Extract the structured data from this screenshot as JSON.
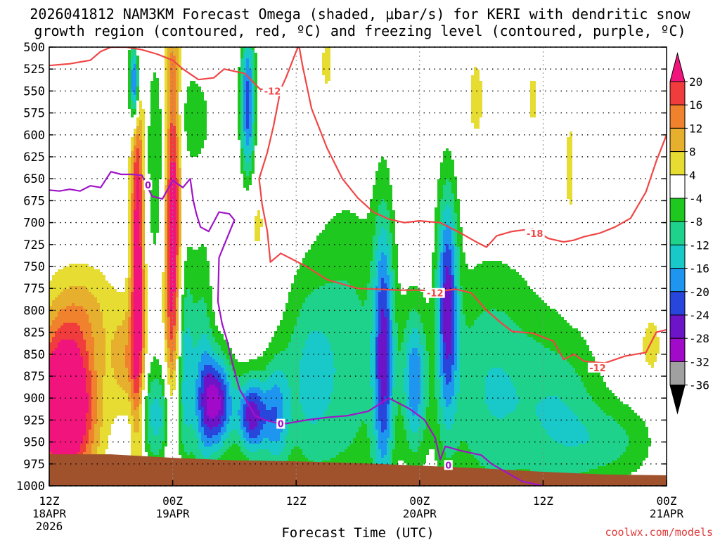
{
  "title": {
    "line1": "2026041812 NAM3KM Forecast Omega (shaded, μbar/s) for KERI with dendritic snow",
    "line2": "growth region (contoured, red, ºC) and freezing level (contoured, purple, ºC)"
  },
  "credit": "coolwx.com/models",
  "chart_data": {
    "type": "heatmap",
    "title": "2026041812 NAM3KM Forecast Omega (shaded, μbar/s) for KERI with dendritic snow growth region (contoured, red, ºC) and freezing level (contoured, purple, ºC)",
    "xlabel": "Forecast Time (UTC)",
    "ylabel": "",
    "x_ticks": [
      {
        "hour": 0,
        "label": "12Z",
        "label2": "18APR",
        "label3": "2026"
      },
      {
        "hour": 12,
        "label": "00Z",
        "label2": "19APR",
        "label3": ""
      },
      {
        "hour": 24,
        "label": "12Z",
        "label2": "",
        "label3": ""
      },
      {
        "hour": 36,
        "label": "00Z",
        "label2": "20APR",
        "label3": ""
      },
      {
        "hour": 48,
        "label": "12Z",
        "label2": "",
        "label3": ""
      },
      {
        "hour": 60,
        "label": "00Z",
        "label2": "21APR",
        "label3": ""
      }
    ],
    "xlim_hours": [
      0,
      60
    ],
    "y_ticks": [
      "500",
      "525",
      "550",
      "575",
      "600",
      "625",
      "650",
      "675",
      "700",
      "725",
      "750",
      "775",
      "800",
      "825",
      "850",
      "875",
      "900",
      "925",
      "950",
      "975",
      "1000"
    ],
    "ylim_hpa": [
      1000,
      500
    ],
    "grid": true,
    "colorbar": {
      "labels": [
        "20",
        "16",
        "12",
        "8",
        "4",
        "-4",
        "-8",
        "-12",
        "-16",
        "-20",
        "-24",
        "-28",
        "-32",
        "-36"
      ],
      "bins": [
        {
          "lo": 20,
          "hi": 99,
          "color": "#f0147c"
        },
        {
          "lo": 16,
          "hi": 20,
          "color": "#f03c3c"
        },
        {
          "lo": 12,
          "hi": 16,
          "color": "#f0822d"
        },
        {
          "lo": 8,
          "hi": 12,
          "color": "#e6af2d"
        },
        {
          "lo": 4,
          "hi": 8,
          "color": "#e6dc32"
        },
        {
          "lo": -4,
          "hi": 4,
          "color": "#ffffff"
        },
        {
          "lo": -8,
          "hi": -4,
          "color": "#1ec81e"
        },
        {
          "lo": -12,
          "hi": -8,
          "color": "#1ed28c"
        },
        {
          "lo": -16,
          "hi": -12,
          "color": "#19c8c8"
        },
        {
          "lo": -20,
          "hi": -16,
          "color": "#1e96f0"
        },
        {
          "lo": -24,
          "hi": -20,
          "color": "#2846dc"
        },
        {
          "lo": -28,
          "hi": -24,
          "color": "#6e14c8"
        },
        {
          "lo": -32,
          "hi": -28,
          "color": "#a00ac8"
        },
        {
          "lo": -36,
          "hi": -32,
          "color": "#a0a0a0"
        },
        {
          "lo": -99,
          "hi": -36,
          "color": "#000000"
        }
      ]
    },
    "omega_features": [
      {
        "hour": 1.5,
        "p": 910,
        "dt": 3.0,
        "dp": 90,
        "amp": 34
      },
      {
        "hour": 3.5,
        "p": 800,
        "dt": 3.5,
        "dp": 60,
        "amp": 7
      },
      {
        "hour": 7.5,
        "p": 860,
        "dt": 1.5,
        "dp": 60,
        "amp": 10
      },
      {
        "hour": 8.6,
        "p": 730,
        "dt": 0.7,
        "dp": 240,
        "amp": 26
      },
      {
        "hour": 12.0,
        "p": 700,
        "dt": 0.8,
        "dp": 240,
        "amp": 28
      },
      {
        "hour": 10.5,
        "p": 630,
        "dt": 2.0,
        "dp": 140,
        "amp": -7
      },
      {
        "hour": 8.3,
        "p": 540,
        "dt": 0.5,
        "dp": 50,
        "amp": -30
      },
      {
        "hour": 10.5,
        "p": 920,
        "dt": 2.0,
        "dp": 60,
        "amp": -14
      },
      {
        "hour": 13.2,
        "p": 860,
        "dt": 1.0,
        "dp": 120,
        "amp": -14
      },
      {
        "hour": 16.3,
        "p": 905,
        "dt": 1.6,
        "dp": 55,
        "amp": -28
      },
      {
        "hour": 19.7,
        "p": 920,
        "dt": 1.4,
        "dp": 45,
        "amp": -26
      },
      {
        "hour": 22.0,
        "p": 920,
        "dt": 1.3,
        "dp": 65,
        "amp": -16
      },
      {
        "hour": 19.3,
        "p": 565,
        "dt": 0.7,
        "dp": 90,
        "amp": -22
      },
      {
        "hour": 25.0,
        "p": 880,
        "dt": 2.5,
        "dp": 110,
        "amp": -10
      },
      {
        "hour": 29.0,
        "p": 860,
        "dt": 4.0,
        "dp": 180,
        "amp": -10
      },
      {
        "hour": 32.5,
        "p": 850,
        "dt": 1.0,
        "dp": 160,
        "amp": -22
      },
      {
        "hour": 35.5,
        "p": 880,
        "dt": 1.2,
        "dp": 80,
        "amp": -18
      },
      {
        "hour": 38.7,
        "p": 790,
        "dt": 1.0,
        "dp": 130,
        "amp": -24
      },
      {
        "hour": 43.0,
        "p": 890,
        "dt": 5.0,
        "dp": 140,
        "amp": -12
      },
      {
        "hour": 50.0,
        "p": 920,
        "dt": 4.0,
        "dp": 100,
        "amp": -10
      },
      {
        "hour": 55.0,
        "p": 950,
        "dt": 4.0,
        "dp": 45,
        "amp": -8
      },
      {
        "hour": 14.0,
        "p": 580,
        "dt": 2.0,
        "dp": 60,
        "amp": -6
      },
      {
        "hour": 15.0,
        "p": 880,
        "dt": 1.0,
        "dp": 150,
        "amp": -11
      },
      {
        "hour": 27.0,
        "p": 520,
        "dt": 0.7,
        "dp": 40,
        "amp": 6
      },
      {
        "hour": 47.0,
        "p": 560,
        "dt": 0.8,
        "dp": 50,
        "amp": 5
      },
      {
        "hour": 41.5,
        "p": 560,
        "dt": 1.2,
        "dp": 80,
        "amp": 5
      },
      {
        "hour": 50.6,
        "p": 640,
        "dt": 0.6,
        "dp": 100,
        "amp": 5
      },
      {
        "hour": 58.5,
        "p": 840,
        "dt": 1.2,
        "dp": 40,
        "amp": 6
      },
      {
        "hour": 20.0,
        "p": 700,
        "dt": 1.5,
        "dp": 60,
        "amp": 5
      }
    ],
    "series": [
      {
        "name": "-12",
        "kind": "dendritic",
        "color": "#f04646",
        "x": [
          0,
          2,
          4,
          5,
          6,
          7.5,
          9,
          10.5,
          12,
          13,
          14.5,
          16,
          17,
          19,
          20.5,
          21.5,
          22.5,
          22.5,
          22.3,
          21.8,
          21.2,
          20.4,
          20.7,
          21.2,
          21.5,
          22.5,
          25,
          27,
          28.5,
          30,
          32,
          34,
          36,
          38,
          39.5,
          41,
          42.5,
          44,
          45,
          47,
          49,
          50,
          51,
          52,
          54,
          56,
          58,
          59,
          60
        ],
        "y": [
          521,
          519,
          515,
          505,
          500,
          500,
          503,
          508,
          515,
          525,
          537,
          535,
          525,
          530,
          548,
          548,
          548,
          545,
          560,
          590,
          620,
          650,
          680,
          710,
          745,
          735,
          750,
          765,
          770,
          775,
          776,
          777,
          777,
          778,
          776,
          780,
          800,
          815,
          824,
          826,
          835,
          856,
          850,
          858,
          860,
          852,
          848,
          825,
          822
        ]
      },
      {
        "name": "-18",
        "kind": "dendritic",
        "color": "#f04646",
        "x": [
          22.5,
          23,
          23.5,
          24,
          24.2,
          24.3,
          24.3,
          24.6,
          25.5,
          27,
          28.5,
          30,
          31.5,
          33,
          34.5,
          36,
          38,
          40,
          41.5,
          42.5,
          43.5,
          45,
          47,
          48.5,
          50,
          51,
          52,
          53.5,
          55,
          56.5,
          58,
          59,
          60
        ],
        "y": [
          548,
          535,
          520,
          505,
          500,
          500,
          500,
          520,
          570,
          615,
          650,
          672,
          688,
          696,
          700,
          698,
          700,
          712,
          722,
          728,
          715,
          710,
          707,
          718,
          722,
          720,
          716,
          712,
          705,
          695,
          665,
          630,
          600
        ]
      },
      {
        "name": "0",
        "kind": "freezing",
        "color": "#a014c8",
        "x": [
          0,
          1,
          2,
          3,
          4,
          5,
          6,
          7,
          7.5,
          8,
          9,
          10,
          11,
          12,
          13,
          13.7,
          14,
          14.3,
          14.7,
          15.5,
          16.5,
          17.5,
          18,
          17.2,
          16.5,
          16.4,
          16.8,
          17.3,
          17.8,
          18.5,
          20,
          21,
          22,
          23,
          25,
          27,
          29,
          31,
          33,
          35,
          36.5,
          37.5,
          38,
          38.5,
          40,
          42,
          43,
          44.5,
          46,
          48
        ],
        "y": [
          663,
          664,
          662,
          664,
          658,
          660,
          642,
          645,
          645,
          645,
          646,
          670,
          673,
          652,
          660,
          650,
          675,
          690,
          705,
          710,
          688,
          690,
          697,
          720,
          740,
          790,
          815,
          835,
          860,
          890,
          920,
          925,
          928,
          929,
          925,
          922,
          920,
          915,
          900,
          912,
          925,
          945,
          970,
          955,
          960,
          965,
          975,
          985,
          995,
          1000
        ]
      }
    ],
    "contour_labels": [
      {
        "text": "-12",
        "hour": 21.7,
        "p": 551,
        "color": "#f04646"
      },
      {
        "text": "-18",
        "hour": 47.2,
        "p": 713,
        "color": "#f04646"
      },
      {
        "text": "-12",
        "hour": 37.5,
        "p": 781,
        "color": "#f04646"
      },
      {
        "text": "-12",
        "hour": 53.3,
        "p": 866,
        "color": "#f04646"
      },
      {
        "text": "0",
        "hour": 9.6,
        "p": 658,
        "color": "#a014c8"
      },
      {
        "text": "0",
        "hour": 22.5,
        "p": 930,
        "color": "#a014c8"
      },
      {
        "text": "0",
        "hour": 38.8,
        "p": 977,
        "color": "#a014c8"
      }
    ],
    "terrain": {
      "color": "#a0522d",
      "hours": [
        0,
        6,
        12,
        18,
        24,
        30,
        36,
        42,
        48,
        54,
        60
      ],
      "top_hpa": [
        964,
        964,
        968,
        971,
        972,
        974,
        977,
        980,
        984,
        987,
        988
      ]
    }
  }
}
